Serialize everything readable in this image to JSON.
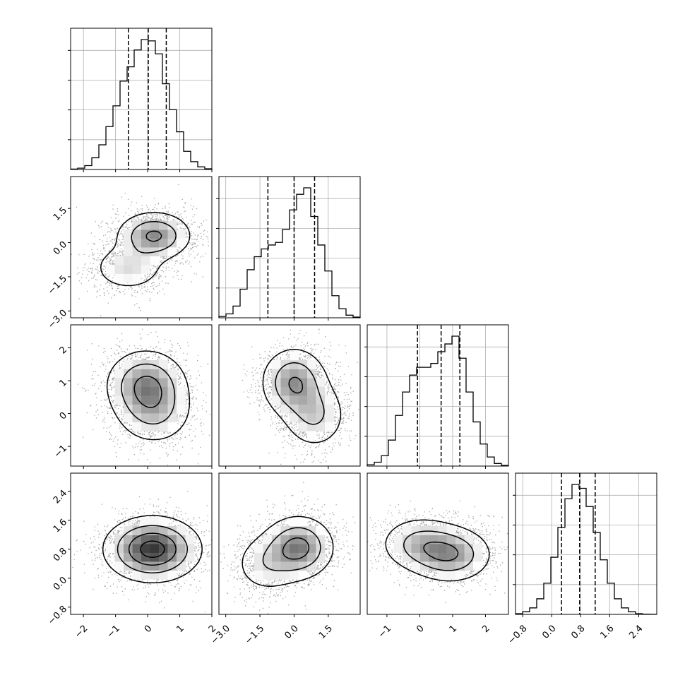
{
  "chart_data": {
    "type": "corner",
    "parameters": [
      {
        "tick_values": [
          -2,
          -1,
          0,
          1,
          2
        ],
        "tick_labels": [
          "−2",
          "−1",
          "0",
          "1",
          "2"
        ],
        "range": [
          -2.4,
          2.0
        ],
        "marginal": {
          "bin_edges": [
            -2.4,
            -2.18,
            -1.96,
            -1.74,
            -1.52,
            -1.3,
            -1.08,
            -0.86,
            -0.64,
            -0.42,
            -0.2,
            0.02,
            0.24,
            0.46,
            0.68,
            0.9,
            1.12,
            1.34,
            1.56,
            1.78,
            2.0
          ],
          "counts": [
            0.3,
            1,
            3,
            9,
            19,
            33,
            49,
            68,
            79,
            92,
            100,
            99,
            89,
            66,
            46,
            29,
            14,
            6,
            2,
            0.5
          ],
          "quantiles": [
            -0.6,
            0.02,
            0.58
          ]
        }
      },
      {
        "tick_values": [
          -3.0,
          -1.5,
          0.0,
          1.5
        ],
        "tick_labels": [
          "−3.0",
          "−1.5",
          "0.0",
          "1.5"
        ],
        "range": [
          -3.3,
          2.9
        ],
        "marginal": {
          "bin_edges": [
            -3.3,
            -2.99,
            -2.68,
            -2.37,
            -2.06,
            -1.75,
            -1.44,
            -1.13,
            -0.82,
            -0.51,
            -0.2,
            0.11,
            0.42,
            0.73,
            1.04,
            1.35,
            1.66,
            1.97,
            2.28,
            2.59,
            2.9
          ],
          "counts": [
            1,
            3,
            9,
            22,
            37,
            47,
            53,
            56,
            58,
            68,
            83,
            95,
            100,
            78,
            56,
            36,
            17,
            7,
            2,
            0.5
          ],
          "quantiles": [
            -1.15,
            0.0,
            0.9
          ]
        }
      },
      {
        "tick_values": [
          -1,
          0,
          1,
          2
        ],
        "tick_labels": [
          "−1",
          "0",
          "1",
          "2"
        ],
        "range": [
          -1.6,
          2.7
        ],
        "marginal": {
          "bin_edges": [
            -1.6,
            -1.385,
            -1.17,
            -0.955,
            -0.74,
            -0.525,
            -0.31,
            -0.095,
            0.12,
            0.335,
            0.55,
            0.765,
            0.98,
            1.195,
            1.41,
            1.625,
            1.84,
            2.055,
            2.27,
            2.485,
            2.7
          ],
          "counts": [
            1,
            3,
            8,
            20,
            39,
            57,
            70,
            76,
            76,
            79,
            88,
            94,
            100,
            83,
            57,
            34,
            17,
            7,
            2,
            0.5
          ],
          "quantiles": [
            -0.07,
            0.65,
            1.22
          ]
        }
      },
      {
        "tick_values": [
          -0.8,
          0.0,
          0.8,
          1.6,
          2.4
        ],
        "tick_labels": [
          "−0.8",
          "0.0",
          "0.8",
          "1.6",
          "2.4"
        ],
        "range": [
          -1.0,
          2.9
        ],
        "marginal": {
          "bin_edges": [
            -1.0,
            -0.805,
            -0.61,
            -0.415,
            -0.22,
            -0.025,
            0.17,
            0.365,
            0.56,
            0.755,
            0.95,
            1.145,
            1.34,
            1.535,
            1.73,
            1.925,
            2.12,
            2.315,
            2.51,
            2.705,
            2.9
          ],
          "counts": [
            0.5,
            2,
            5,
            12,
            24,
            44,
            67,
            89,
            100,
            97,
            83,
            63,
            42,
            24,
            12,
            5,
            2,
            0.5,
            0.2,
            0.1
          ],
          "quantiles": [
            0.27,
            0.77,
            1.2
          ]
        }
      }
    ],
    "pairs": [
      {
        "x_param": 0,
        "y_param": 1,
        "centers": [
          [
            0.2,
            0.3,
            1.0
          ],
          [
            -0.6,
            -1.1,
            0.5
          ]
        ],
        "spread": [
          0.6,
          0.55
        ]
      },
      {
        "x_param": 0,
        "y_param": 2,
        "centers": [
          [
            -0.05,
            0.9,
            1.0
          ],
          [
            0.2,
            0.05,
            0.6
          ]
        ],
        "spread": [
          0.65,
          0.55
        ]
      },
      {
        "x_param": 1,
        "y_param": 2,
        "centers": [
          [
            0.0,
            0.95,
            1.0
          ],
          [
            0.9,
            -0.05,
            0.6
          ]
        ],
        "spread": [
          0.75,
          0.55
        ]
      },
      {
        "x_param": 0,
        "y_param": 3,
        "centers": [
          [
            0.15,
            0.8,
            1.0
          ]
        ],
        "spread": [
          0.75,
          0.45
        ]
      },
      {
        "x_param": 1,
        "y_param": 3,
        "centers": [
          [
            0.2,
            0.85,
            1.0
          ],
          [
            -1.2,
            0.4,
            0.4
          ]
        ],
        "spread": [
          0.8,
          0.45
        ]
      },
      {
        "x_param": 2,
        "y_param": 3,
        "centers": [
          [
            0.95,
            0.65,
            1.0
          ],
          [
            0.0,
            0.95,
            0.7
          ]
        ],
        "spread": [
          0.65,
          0.4
        ]
      }
    ]
  }
}
